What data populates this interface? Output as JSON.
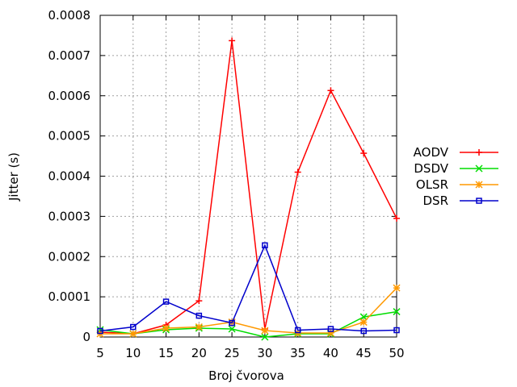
{
  "chart_data": {
    "type": "line",
    "title": "",
    "xlabel": "Broj čvorova",
    "ylabel": "Jitter (s)",
    "x": [
      5,
      10,
      15,
      20,
      25,
      30,
      35,
      40,
      45,
      50
    ],
    "xlim": [
      5,
      50
    ],
    "ylim": [
      0,
      0.0008
    ],
    "xticks": [
      "5",
      "10",
      "15",
      "20",
      "25",
      "30",
      "35",
      "40",
      "45",
      "50"
    ],
    "yticks": [
      "0",
      "0.0001",
      "0.0002",
      "0.0003",
      "0.0004",
      "0.0005",
      "0.0006",
      "0.0007",
      "0.0008"
    ],
    "grid": true,
    "legend_position": "right",
    "series": [
      {
        "name": "AODV",
        "color": "#ff0000",
        "marker": "plus",
        "values": [
          1.2e-05,
          8e-06,
          3e-05,
          9e-05,
          0.000737,
          2e-05,
          0.00041,
          0.000613,
          0.000457,
          0.000295
        ]
      },
      {
        "name": "DSDV",
        "color": "#00dd00",
        "marker": "cross",
        "values": [
          1.8e-05,
          8e-06,
          1.8e-05,
          2.2e-05,
          2e-05,
          0.0,
          8e-06,
          8e-06,
          5e-05,
          6.3e-05
        ]
      },
      {
        "name": "OLSR",
        "color": "#ff9900",
        "marker": "star",
        "values": [
          8e-06,
          8e-06,
          2.2e-05,
          2.5e-05,
          3.7e-05,
          1.6e-05,
          1e-05,
          1e-05,
          3.7e-05,
          0.000122
        ]
      },
      {
        "name": "DSR",
        "color": "#0000cc",
        "marker": "square",
        "values": [
          1.5e-05,
          2.5e-05,
          8.8e-05,
          5.3e-05,
          3.5e-05,
          0.000228,
          1.7e-05,
          2e-05,
          1.5e-05,
          1.7e-05
        ]
      }
    ]
  }
}
